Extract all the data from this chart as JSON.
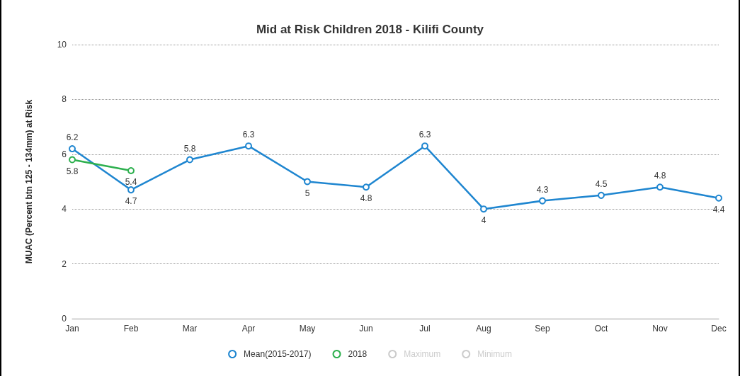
{
  "chart_data": {
    "type": "line",
    "title": "Mid at Risk Children 2018 - Kilifi County",
    "ylabel": "MUAC (Percent btn 125 - 134mm) at Risk",
    "categories": [
      "Jan",
      "Feb",
      "Mar",
      "Apr",
      "May",
      "Jun",
      "Jul",
      "Aug",
      "Sep",
      "Oct",
      "Nov",
      "Dec"
    ],
    "series": [
      {
        "name": "Mean(2015-2017)",
        "color": "#1f86d0",
        "values": [
          6.2,
          4.7,
          5.8,
          6.3,
          5,
          4.8,
          6.3,
          4,
          4.3,
          4.5,
          4.8,
          4.4
        ]
      },
      {
        "name": "2018",
        "color": "#2eb04f",
        "values": [
          5.8,
          5.4,
          null,
          null,
          null,
          null,
          null,
          null,
          null,
          null,
          null,
          null
        ]
      },
      {
        "name": "Maximum",
        "color": "#cccccc",
        "values": [
          null,
          null,
          null,
          null,
          null,
          null,
          null,
          null,
          null,
          null,
          null,
          null
        ]
      },
      {
        "name": "Minimum",
        "color": "#cccccc",
        "values": [
          null,
          null,
          null,
          null,
          null,
          null,
          null,
          null,
          null,
          null,
          null,
          null
        ]
      }
    ],
    "ylim": [
      0,
      10
    ],
    "yticks": [
      0,
      2,
      4,
      6,
      8,
      10
    ],
    "grid": "y",
    "legend": "bottom",
    "marker": "circle",
    "line_style": "solid",
    "data_labels": true
  }
}
